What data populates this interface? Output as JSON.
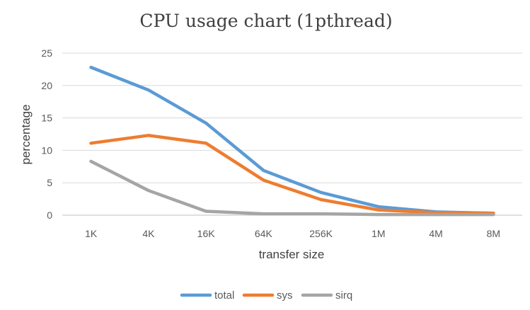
{
  "chart_data": {
    "type": "line",
    "title": "CPU usage chart (1pthread)",
    "xlabel": "transfer size",
    "ylabel": "percentage",
    "categories": [
      "1K",
      "4K",
      "16K",
      "64K",
      "256K",
      "1M",
      "4M",
      "8M"
    ],
    "ylim": [
      0,
      25
    ],
    "yticks": [
      0,
      5,
      10,
      15,
      20,
      25
    ],
    "grid": true,
    "legend": "bottom",
    "series": [
      {
        "name": "total",
        "color": "#5B9BD5",
        "values": [
          22.8,
          19.3,
          14.2,
          6.9,
          3.5,
          1.3,
          0.5,
          0.3
        ]
      },
      {
        "name": "sys",
        "color": "#ED7D31",
        "values": [
          11.1,
          12.3,
          11.1,
          5.4,
          2.4,
          0.8,
          0.4,
          0.3
        ]
      },
      {
        "name": "sirq",
        "color": "#A5A5A5",
        "values": [
          8.3,
          3.8,
          0.6,
          0.2,
          0.2,
          0.1,
          0.1,
          0.1
        ]
      }
    ]
  }
}
